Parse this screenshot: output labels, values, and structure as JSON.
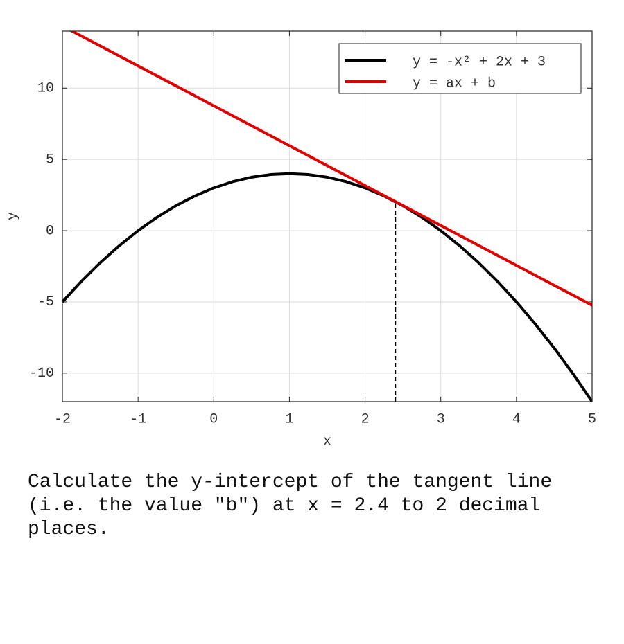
{
  "chart_data": {
    "type": "line",
    "x_label": "x",
    "y_label": "y",
    "xlim": [
      -2,
      5
    ],
    "ylim": [
      -12,
      14
    ],
    "xticks": [
      -2,
      -1,
      0,
      1,
      2,
      3,
      4,
      5
    ],
    "yticks": [
      -10,
      -5,
      0,
      5,
      10
    ],
    "grid": true,
    "legend": "upper right",
    "series": [
      {
        "name": "y = -x² + 2x + 3",
        "color": "#000000",
        "x": [
          -2,
          -1.75,
          -1.5,
          -1.25,
          -1,
          -0.75,
          -0.5,
          -0.25,
          0,
          0.25,
          0.5,
          0.75,
          1,
          1.25,
          1.5,
          1.75,
          2,
          2.25,
          2.5,
          2.75,
          3,
          3.25,
          3.5,
          3.75,
          4,
          4.25,
          4.5,
          4.75,
          5
        ],
        "values": [
          -5,
          -3.5625,
          -2.25,
          -1.0625,
          0,
          0.9375,
          1.75,
          2.4375,
          3,
          3.4375,
          3.75,
          3.9375,
          4,
          3.9375,
          3.75,
          3.4375,
          3,
          2.4375,
          1.75,
          0.9375,
          0,
          -1.0625,
          -2.25,
          -3.5625,
          -5,
          -6.5625,
          -8.25,
          -10.0625,
          -12
        ]
      },
      {
        "name": "y = ax + b",
        "color": "#e00000",
        "x": [
          -2,
          5
        ],
        "values": [
          14.36,
          -5.24
        ]
      }
    ],
    "tangent_point": {
      "x": 2.4,
      "y": 2.04
    }
  },
  "question": "Calculate the y-intercept of the tangent line (i.e. the value \"b\") at x = 2.4 to 2 decimal places."
}
